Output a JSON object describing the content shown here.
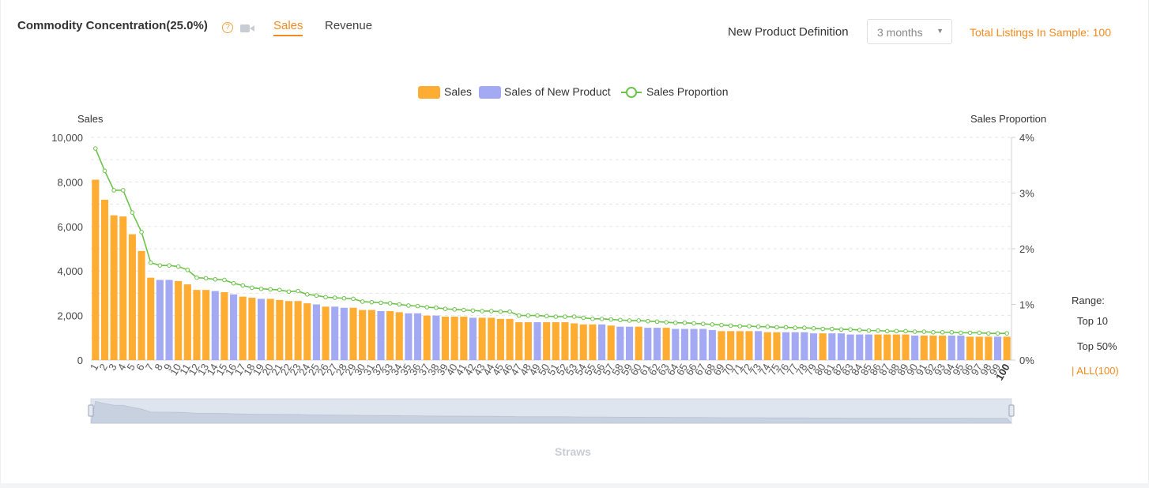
{
  "header": {
    "title": "Commodity Concentration(25.0%)",
    "help_icon": "question-circle-icon",
    "video_icon": "video-camera-icon",
    "tabs": [
      {
        "label": "Sales",
        "active": true
      },
      {
        "label": "Revenue",
        "active": false
      }
    ],
    "new_product_label": "New Product Definition",
    "select_value": "3 months",
    "total_listings": "Total Listings In Sample: 100"
  },
  "range": {
    "label": "Range:",
    "options": [
      "Top 10",
      "Top 50%",
      "| ALL(100)"
    ],
    "selected": "| ALL(100)"
  },
  "colors": {
    "sales": "#ffac33",
    "new_product": "#a3a9f2",
    "proportion": "#6cc24a",
    "accent": "#f28a1f"
  },
  "chart_data": {
    "type": "bar",
    "title": "",
    "xlabel": "Straws",
    "ylabel": "Sales",
    "y2label": "Sales Proportion",
    "ylim": [
      0,
      10000
    ],
    "y2lim": [
      0,
      4
    ],
    "yticks": [
      "0",
      "2,000",
      "4,000",
      "6,000",
      "8,000",
      "10,000"
    ],
    "y2ticks": [
      "0%",
      "1%",
      "2%",
      "3%",
      "4%"
    ],
    "legend": {
      "position": "top-center",
      "entries": [
        "Sales",
        "Sales of New Product",
        "Sales Proportion"
      ]
    },
    "grid": true,
    "categories": [
      "1",
      "2",
      "3",
      "4",
      "5",
      "6",
      "7",
      "8",
      "9",
      "10",
      "11",
      "12",
      "13",
      "14",
      "15",
      "16",
      "17",
      "18",
      "19",
      "20",
      "21",
      "22",
      "23",
      "24",
      "25",
      "26",
      "27",
      "28",
      "29",
      "30",
      "31",
      "32",
      "33",
      "34",
      "35",
      "36",
      "37",
      "38",
      "39",
      "40",
      "41",
      "42",
      "43",
      "44",
      "45",
      "46",
      "47",
      "48",
      "49",
      "50",
      "51",
      "52",
      "53",
      "54",
      "55",
      "56",
      "57",
      "58",
      "59",
      "60",
      "61",
      "62",
      "63",
      "64",
      "65",
      "66",
      "67",
      "68",
      "69",
      "70",
      "71",
      "72",
      "73",
      "74",
      "75",
      "76",
      "77",
      "78",
      "79",
      "80",
      "81",
      "82",
      "83",
      "84",
      "85",
      "86",
      "87",
      "88",
      "89",
      "90",
      "91",
      "92",
      "93",
      "94",
      "95",
      "96",
      "97",
      "98",
      "99",
      "100"
    ],
    "values": [
      8100,
      7200,
      6500,
      6450,
      5650,
      4900,
      3700,
      3600,
      3600,
      3550,
      3400,
      3150,
      3150,
      3100,
      3050,
      2950,
      2850,
      2800,
      2750,
      2750,
      2700,
      2650,
      2650,
      2550,
      2500,
      2400,
      2400,
      2350,
      2350,
      2250,
      2250,
      2200,
      2200,
      2150,
      2100,
      2100,
      2000,
      2000,
      1950,
      1950,
      1950,
      1900,
      1900,
      1900,
      1850,
      1850,
      1700,
      1700,
      1700,
      1700,
      1700,
      1700,
      1650,
      1600,
      1600,
      1600,
      1550,
      1500,
      1500,
      1500,
      1450,
      1450,
      1450,
      1400,
      1400,
      1400,
      1400,
      1350,
      1300,
      1300,
      1300,
      1300,
      1300,
      1250,
      1250,
      1250,
      1250,
      1250,
      1200,
      1200,
      1200,
      1200,
      1150,
      1150,
      1150,
      1150,
      1150,
      1150,
      1150,
      1100,
      1100,
      1100,
      1100,
      1100,
      1100,
      1050,
      1050,
      1050,
      1050,
      1050
    ],
    "new_product": [
      false,
      false,
      false,
      false,
      false,
      false,
      false,
      true,
      true,
      false,
      false,
      false,
      false,
      true,
      false,
      true,
      false,
      false,
      true,
      false,
      false,
      false,
      false,
      false,
      true,
      false,
      true,
      true,
      false,
      false,
      false,
      true,
      false,
      false,
      true,
      true,
      false,
      true,
      false,
      false,
      false,
      true,
      false,
      false,
      false,
      false,
      false,
      false,
      true,
      false,
      false,
      false,
      false,
      false,
      false,
      true,
      false,
      true,
      true,
      false,
      true,
      true,
      false,
      true,
      true,
      true,
      true,
      true,
      false,
      false,
      false,
      false,
      true,
      false,
      false,
      true,
      true,
      true,
      true,
      false,
      true,
      true,
      true,
      true,
      true,
      false,
      false,
      false,
      false,
      true,
      false,
      false,
      false,
      true,
      true,
      false,
      false,
      false,
      true,
      false
    ],
    "proportion": [
      3.8,
      3.4,
      3.05,
      3.05,
      2.65,
      2.3,
      1.75,
      1.7,
      1.7,
      1.68,
      1.62,
      1.48,
      1.47,
      1.45,
      1.44,
      1.38,
      1.34,
      1.3,
      1.28,
      1.27,
      1.26,
      1.23,
      1.24,
      1.18,
      1.16,
      1.13,
      1.12,
      1.11,
      1.1,
      1.05,
      1.04,
      1.03,
      1.02,
      1.0,
      0.98,
      0.97,
      0.95,
      0.94,
      0.92,
      0.91,
      0.9,
      0.89,
      0.88,
      0.88,
      0.87,
      0.87,
      0.8,
      0.8,
      0.8,
      0.79,
      0.78,
      0.78,
      0.78,
      0.76,
      0.74,
      0.74,
      0.73,
      0.72,
      0.71,
      0.71,
      0.7,
      0.69,
      0.68,
      0.67,
      0.67,
      0.66,
      0.65,
      0.64,
      0.63,
      0.62,
      0.61,
      0.61,
      0.6,
      0.6,
      0.59,
      0.59,
      0.58,
      0.58,
      0.57,
      0.56,
      0.56,
      0.55,
      0.55,
      0.54,
      0.53,
      0.53,
      0.52,
      0.52,
      0.52,
      0.51,
      0.51,
      0.5,
      0.5,
      0.5,
      0.49,
      0.49,
      0.49,
      0.48,
      0.48,
      0.48
    ]
  }
}
